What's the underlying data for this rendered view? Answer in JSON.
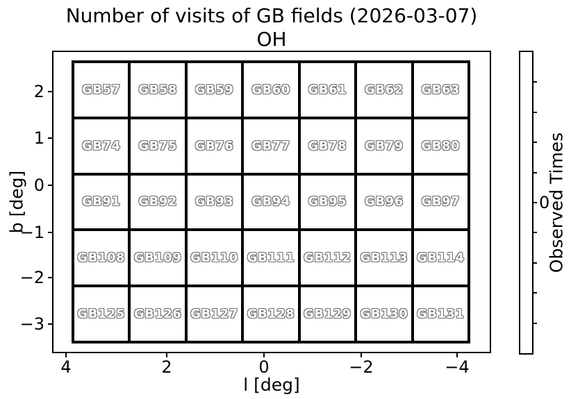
{
  "figure": {
    "title": "Number of visits of GB fields (2026-03-07)",
    "subtitle": "OH"
  },
  "axes": {
    "xlabel": "l [deg]",
    "ylabel": "b [deg]",
    "x_ticks": [
      "4",
      "2",
      "0",
      "−2",
      "−4"
    ],
    "y_ticks": [
      "2",
      "1",
      "0",
      "−1",
      "−2",
      "−3"
    ]
  },
  "colorbar": {
    "label": "Observed Times",
    "tick": "0"
  },
  "grid": {
    "rows": [
      [
        "GB57",
        "GB58",
        "GB59",
        "GB60",
        "GB61",
        "GB62",
        "GB63"
      ],
      [
        "GB74",
        "GB75",
        "GB76",
        "GB77",
        "GB78",
        "GB79",
        "GB80"
      ],
      [
        "GB91",
        "GB92",
        "GB93",
        "GB94",
        "GB95",
        "GB96",
        "GB97"
      ],
      [
        "GB108",
        "GB109",
        "GB110",
        "GB111",
        "GB112",
        "GB113",
        "GB114"
      ],
      [
        "GB125",
        "GB126",
        "GB127",
        "GB128",
        "GB129",
        "GB130",
        "GB131"
      ]
    ]
  },
  "colors": {
    "background": "#ffffff",
    "line": "#000000",
    "cell_fill": "#ffffff",
    "cell_label_fill": "#ffffff",
    "cell_label_outline": "#707070"
  },
  "chart_data": {
    "type": "heatmap",
    "title": "Number of visits of GB fields (2026-03-07)",
    "subtitle": "OH",
    "xlabel": "l [deg]",
    "ylabel": "b [deg]",
    "x_tick_values": [
      4,
      2,
      0,
      -2,
      -4
    ],
    "y_tick_values": [
      2,
      1,
      0,
      -1,
      -2,
      -3
    ],
    "x_axis_inverted": true,
    "grid_shape": {
      "rows": 5,
      "cols": 7
    },
    "field_names": [
      [
        "GB57",
        "GB58",
        "GB59",
        "GB60",
        "GB61",
        "GB62",
        "GB63"
      ],
      [
        "GB74",
        "GB75",
        "GB76",
        "GB77",
        "GB78",
        "GB79",
        "GB80"
      ],
      [
        "GB91",
        "GB92",
        "GB93",
        "GB94",
        "GB95",
        "GB96",
        "GB97"
      ],
      [
        "GB108",
        "GB109",
        "GB110",
        "GB111",
        "GB112",
        "GB113",
        "GB114"
      ],
      [
        "GB125",
        "GB126",
        "GB127",
        "GB128",
        "GB129",
        "GB130",
        "GB131"
      ]
    ],
    "values": [
      [
        0,
        0,
        0,
        0,
        0,
        0,
        0
      ],
      [
        0,
        0,
        0,
        0,
        0,
        0,
        0
      ],
      [
        0,
        0,
        0,
        0,
        0,
        0,
        0
      ],
      [
        0,
        0,
        0,
        0,
        0,
        0,
        0
      ],
      [
        0,
        0,
        0,
        0,
        0,
        0,
        0
      ]
    ],
    "colorbar": {
      "label": "Observed Times",
      "tick_labels": [
        "0"
      ],
      "fill": "#ffffff"
    },
    "legend": "none",
    "grid_lines": "cell borders only, black"
  }
}
